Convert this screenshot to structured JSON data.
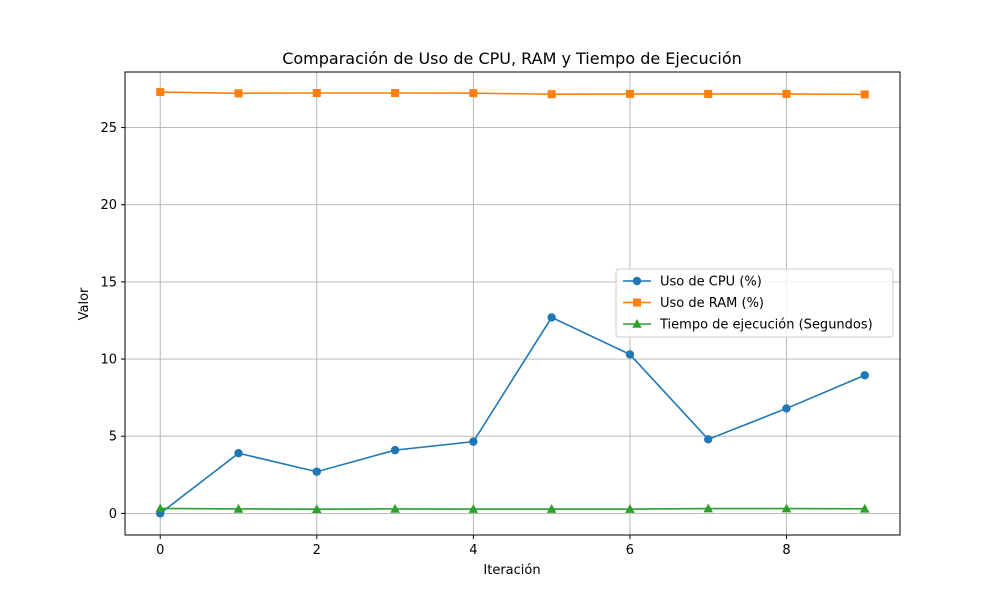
{
  "chart_data": {
    "type": "line",
    "title": "Comparación de Uso de CPU, RAM y Tiempo de Ejecución",
    "xlabel": "Iteración",
    "ylabel": "Valor",
    "x": [
      0,
      1,
      2,
      3,
      4,
      5,
      6,
      7,
      8,
      9
    ],
    "xlim": [
      -0.45,
      9.45
    ],
    "ylim": [
      -1.4,
      28.6
    ],
    "xticks": [
      0,
      2,
      4,
      6,
      8
    ],
    "yticks": [
      0,
      5,
      10,
      15,
      20,
      25
    ],
    "grid": true,
    "legend_position": "center-right",
    "series": [
      {
        "name": "Uso de CPU (%)",
        "color": "#1f77b4",
        "marker": "circle",
        "values": [
          0.0,
          3.9,
          2.7,
          4.1,
          4.65,
          12.7,
          10.3,
          4.8,
          6.8,
          8.95
        ]
      },
      {
        "name": "Uso de RAM (%)",
        "color": "#ff7f0e",
        "marker": "square",
        "values": [
          27.3,
          27.22,
          27.24,
          27.24,
          27.23,
          27.16,
          27.18,
          27.18,
          27.18,
          27.15
        ]
      },
      {
        "name": "Tiempo de ejecución (Segundos)",
        "color": "#2ca02c",
        "marker": "triangle",
        "values": [
          0.32,
          0.29,
          0.27,
          0.29,
          0.28,
          0.28,
          0.28,
          0.31,
          0.31,
          0.3
        ]
      }
    ]
  }
}
